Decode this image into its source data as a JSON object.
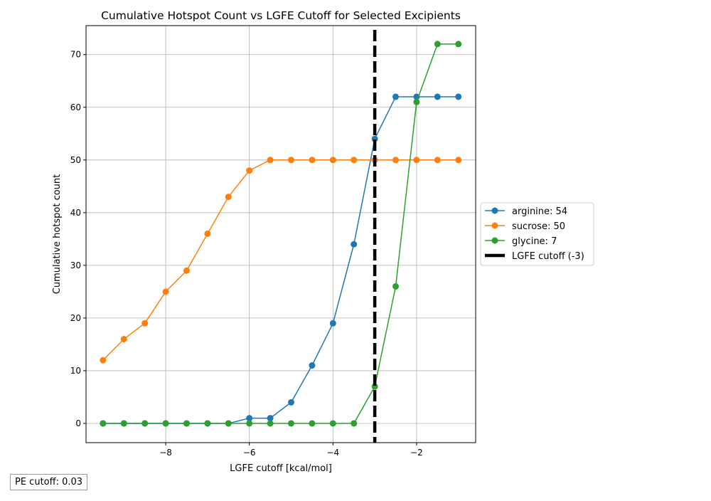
{
  "chart_data": {
    "type": "line",
    "title": "Cumulative Hotspot Count vs LGFE Cutoff for Selected Excipients",
    "xlabel": "LGFE cutoff [kcal/mol]",
    "ylabel": "Cumulative hotspot count",
    "xlim": [
      -9.906,
      -0.587
    ],
    "ylim": [
      -3.65,
      75.5
    ],
    "xticks": [
      -8,
      -6,
      -4,
      -2
    ],
    "xtick_labels": [
      "−8",
      "−6",
      "−4",
      "−2"
    ],
    "yticks": [
      0,
      10,
      20,
      30,
      40,
      50,
      60,
      70
    ],
    "ytick_labels": [
      "0",
      "10",
      "20",
      "30",
      "40",
      "50",
      "60",
      "70"
    ],
    "grid": true,
    "x": [
      -9.5,
      -9,
      -8.5,
      -8,
      -7.5,
      -7,
      -6.5,
      -6,
      -5.5,
      -5,
      -4.5,
      -4,
      -3.5,
      -3,
      -2.5,
      -2,
      -1.5,
      -1
    ],
    "series": [
      {
        "name": "arginine: 54",
        "color": "#1f77b4",
        "values": [
          0,
          0,
          0,
          0,
          0,
          0,
          0,
          1,
          1,
          4,
          11,
          19,
          34,
          54,
          62,
          62,
          62,
          62
        ]
      },
      {
        "name": "sucrose: 50",
        "color": "#ff7f0e",
        "values": [
          12,
          16,
          19,
          25,
          29,
          36,
          43,
          48,
          50,
          50,
          50,
          50,
          50,
          50,
          50,
          50,
          50,
          50
        ]
      },
      {
        "name": "glycine: 7",
        "color": "#2ca02c",
        "values": [
          0,
          0,
          0,
          0,
          0,
          0,
          0,
          0,
          0,
          0,
          0,
          0,
          0,
          7,
          26,
          61,
          72,
          72
        ]
      }
    ],
    "cutoff": {
      "name": "LGFE cutoff (-3)",
      "x": -3,
      "color": "#000000"
    },
    "legend_placement": "right"
  },
  "annotation": {
    "pe_cutoff": "PE cutoff: 0.03"
  }
}
